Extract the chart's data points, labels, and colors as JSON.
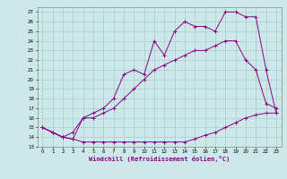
{
  "title": "",
  "xlabel": "Windchill (Refroidissement éolien,°C)",
  "ylabel": "",
  "background_color": "#cde8e8",
  "line_color": "#880088",
  "grid_color": "#aacccc",
  "xlim": [
    -0.5,
    23.5
  ],
  "ylim": [
    13,
    27.5
  ],
  "xticks": [
    0,
    1,
    2,
    3,
    4,
    5,
    6,
    7,
    8,
    9,
    10,
    11,
    12,
    13,
    14,
    15,
    16,
    17,
    18,
    19,
    20,
    21,
    22,
    23
  ],
  "yticks": [
    13,
    14,
    15,
    16,
    17,
    18,
    19,
    20,
    21,
    22,
    23,
    24,
    25,
    26,
    27
  ],
  "series": [
    {
      "x": [
        0,
        1,
        2,
        3,
        4,
        5,
        6,
        7,
        8,
        9,
        10,
        11,
        12,
        13,
        14,
        15,
        16,
        17,
        18,
        19,
        20,
        21,
        22,
        23
      ],
      "y": [
        15,
        14.5,
        14,
        13.8,
        13.5,
        13.5,
        13.5,
        13.5,
        13.5,
        13.5,
        13.5,
        13.5,
        13.5,
        13.5,
        13.5,
        13.8,
        14.2,
        14.5,
        15.0,
        15.5,
        16.0,
        16.3,
        16.5,
        16.5
      ],
      "marker": "+"
    },
    {
      "x": [
        0,
        1,
        2,
        3,
        4,
        5,
        6,
        7,
        8,
        9,
        10,
        11,
        12,
        13,
        14,
        15,
        16,
        17,
        18,
        19,
        20,
        21,
        22,
        23
      ],
      "y": [
        15,
        14.5,
        14,
        14.5,
        16,
        16,
        16.5,
        17,
        18,
        19,
        20,
        21,
        21.5,
        22,
        22.5,
        23,
        23,
        23.5,
        24,
        24,
        22,
        21,
        17.5,
        17
      ],
      "marker": "+"
    },
    {
      "x": [
        0,
        1,
        2,
        3,
        4,
        5,
        6,
        7,
        8,
        9,
        10,
        11,
        12,
        13,
        14,
        15,
        16,
        17,
        18,
        19,
        20,
        21,
        22,
        23
      ],
      "y": [
        15,
        14.5,
        14,
        13.8,
        16,
        16.5,
        17,
        18,
        20.5,
        21,
        20.5,
        24,
        22.5,
        25,
        26,
        25.5,
        25.5,
        25,
        27,
        27,
        26.5,
        26.5,
        21,
        16.5
      ],
      "marker": "+"
    }
  ]
}
